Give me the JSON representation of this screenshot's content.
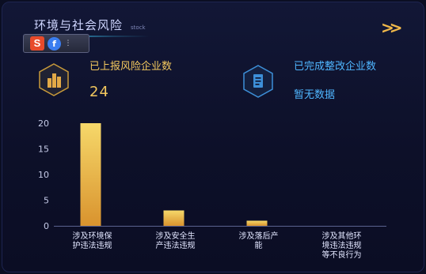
{
  "header": {
    "title": "环境与社会风险",
    "subtitle": "stock"
  },
  "toolbar": {
    "red_icon_glyph": "S",
    "blue_icon_glyph": "f",
    "grip_glyph": "⋮"
  },
  "stats": [
    {
      "label": "已上报风险企业数",
      "value": "24",
      "icon": "building-icon",
      "color": "#f3c85e"
    },
    {
      "label": "已完成整改企业数",
      "value": "暂无数据",
      "icon": "document-icon",
      "color": "#4fb6ff"
    }
  ],
  "nav": {
    "arrow": ">>"
  },
  "chart_data": {
    "type": "bar",
    "categories": [
      [
        "涉及环境保",
        "护违法违规"
      ],
      [
        "涉及安全生",
        "产违法违规"
      ],
      [
        "涉及落后产",
        "能"
      ],
      [
        "涉及其他环",
        "境违法违规",
        "等不良行为"
      ]
    ],
    "values": [
      20,
      3,
      1,
      0
    ],
    "yticks": [
      0,
      5,
      10,
      15,
      20
    ],
    "ylim": [
      0,
      20
    ],
    "bar_gradient": [
      "#f6d86a",
      "#d9932e"
    ],
    "axis_color": "#5a6290"
  }
}
